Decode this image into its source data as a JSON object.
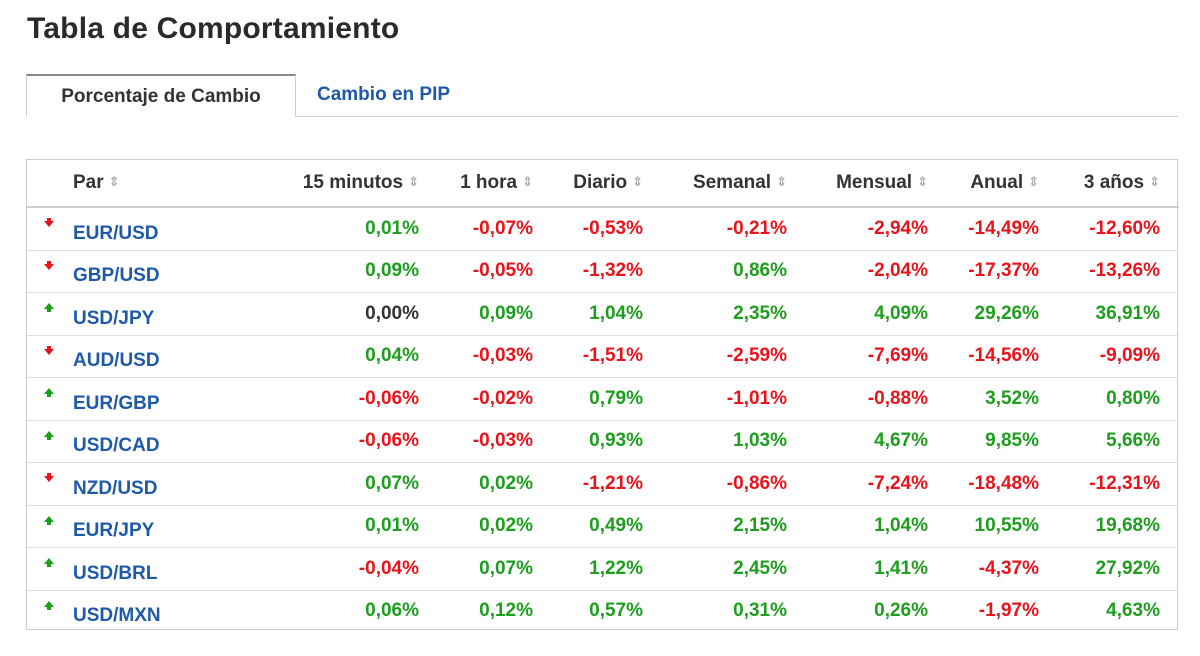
{
  "title": "Tabla de Comportamiento",
  "tabs": [
    {
      "label": "Porcentaje de Cambio",
      "active": true
    },
    {
      "label": "Cambio en PIP",
      "active": false
    }
  ],
  "colors": {
    "positive": "#1e9d1e",
    "negative": "#e8131b",
    "neutral": "#333333",
    "link": "#1e5aa8"
  },
  "table": {
    "headers": [
      "Par",
      "15 minutos",
      "1 hora",
      "Diario",
      "Semanal",
      "Mensual",
      "Anual",
      "3 años"
    ],
    "sort_icon": "sort-updown-icon",
    "rows": [
      {
        "pair": "EUR/USD",
        "trend": "down",
        "values": [
          "0,01%",
          "-0,07%",
          "-0,53%",
          "-0,21%",
          "-2,94%",
          "-14,49%",
          "-12,60%"
        ]
      },
      {
        "pair": "GBP/USD",
        "trend": "down",
        "values": [
          "0,09%",
          "-0,05%",
          "-1,32%",
          "0,86%",
          "-2,04%",
          "-17,37%",
          "-13,26%"
        ]
      },
      {
        "pair": "USD/JPY",
        "trend": "up",
        "values": [
          "0,00%",
          "0,09%",
          "1,04%",
          "2,35%",
          "4,09%",
          "29,26%",
          "36,91%"
        ]
      },
      {
        "pair": "AUD/USD",
        "trend": "down",
        "values": [
          "0,04%",
          "-0,03%",
          "-1,51%",
          "-2,59%",
          "-7,69%",
          "-14,56%",
          "-9,09%"
        ]
      },
      {
        "pair": "EUR/GBP",
        "trend": "up",
        "values": [
          "-0,06%",
          "-0,02%",
          "0,79%",
          "-1,01%",
          "-0,88%",
          "3,52%",
          "0,80%"
        ]
      },
      {
        "pair": "USD/CAD",
        "trend": "up",
        "values": [
          "-0,06%",
          "-0,03%",
          "0,93%",
          "1,03%",
          "4,67%",
          "9,85%",
          "5,66%"
        ]
      },
      {
        "pair": "NZD/USD",
        "trend": "down",
        "values": [
          "0,07%",
          "0,02%",
          "-1,21%",
          "-0,86%",
          "-7,24%",
          "-18,48%",
          "-12,31%"
        ]
      },
      {
        "pair": "EUR/JPY",
        "trend": "up",
        "values": [
          "0,01%",
          "0,02%",
          "0,49%",
          "2,15%",
          "1,04%",
          "10,55%",
          "19,68%"
        ]
      },
      {
        "pair": "USD/BRL",
        "trend": "up",
        "values": [
          "-0,04%",
          "0,07%",
          "1,22%",
          "2,45%",
          "1,41%",
          "-4,37%",
          "27,92%"
        ]
      },
      {
        "pair": "USD/MXN",
        "trend": "up",
        "values": [
          "0,06%",
          "0,12%",
          "0,57%",
          "0,31%",
          "0,26%",
          "-1,97%",
          "4,63%"
        ]
      }
    ]
  }
}
